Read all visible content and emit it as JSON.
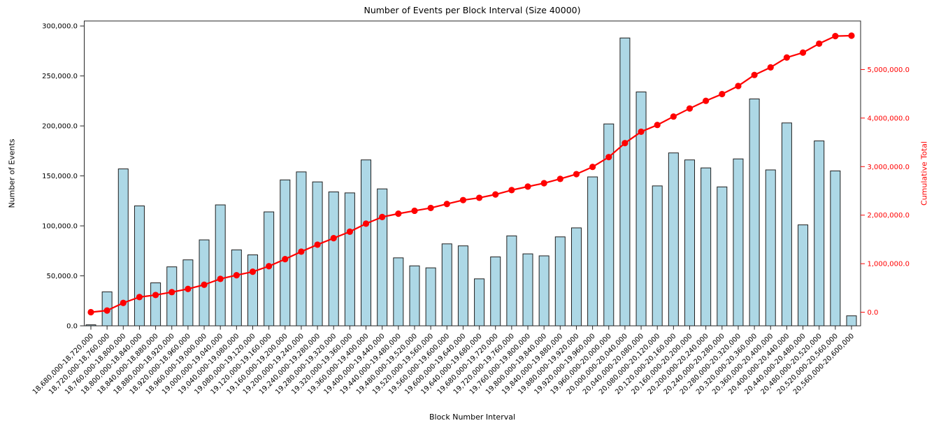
{
  "chart_data": {
    "type": "bar",
    "title": "Number of Events per Block Interval (Size 40000)",
    "xlabel": "Block Number Interval",
    "ylabel": "Number of Events",
    "ylabel2": "Cumulative Total",
    "grid": false,
    "legend": "none",
    "background": "#ffffff",
    "x_tick_rotation": 45,
    "categories": [
      "18,680,000-18,720,000",
      "18,720,000-18,760,000",
      "18,760,000-18,800,000",
      "18,800,000-18,840,000",
      "18,840,000-18,880,000",
      "18,880,000-18,920,000",
      "18,920,000-18,960,000",
      "18,960,000-19,000,000",
      "19,000,000-19,040,000",
      "19,040,000-19,080,000",
      "19,080,000-19,120,000",
      "19,120,000-19,160,000",
      "19,160,000-19,200,000",
      "19,200,000-19,240,000",
      "19,240,000-19,280,000",
      "19,280,000-19,320,000",
      "19,320,000-19,360,000",
      "19,360,000-19,400,000",
      "19,400,000-19,440,000",
      "19,440,000-19,480,000",
      "19,480,000-19,520,000",
      "19,520,000-19,560,000",
      "19,560,000-19,600,000",
      "19,600,000-19,640,000",
      "19,640,000-19,680,000",
      "19,680,000-19,720,000",
      "19,720,000-19,760,000",
      "19,760,000-19,800,000",
      "19,800,000-19,840,000",
      "19,840,000-19,880,000",
      "19,880,000-19,920,000",
      "19,920,000-19,960,000",
      "19,960,000-20,000,000",
      "20,000,000-20,040,000",
      "20,040,000-20,080,000",
      "20,080,000-20,120,000",
      "20,120,000-20,160,000",
      "20,160,000-20,200,000",
      "20,200,000-20,240,000",
      "20,240,000-20,280,000",
      "20,280,000-20,320,000",
      "20,320,000-20,360,000",
      "20,360,000-20,400,000",
      "20,400,000-20,440,000",
      "20,440,000-20,480,000",
      "20,480,000-20,520,000",
      "20,520,000-20,560,000",
      "20,560,000-20,600,000"
    ],
    "series": [
      {
        "name": "Number of Events",
        "type": "bar",
        "axis": "left",
        "color": "#add8e6",
        "edge_color": "#1f1f1f",
        "values": [
          1000,
          34000,
          157000,
          120000,
          43000,
          59000,
          66000,
          86000,
          121000,
          76000,
          71000,
          114000,
          146000,
          154000,
          144000,
          134000,
          133000,
          166000,
          137000,
          68000,
          60000,
          58000,
          82000,
          80000,
          47000,
          69000,
          90000,
          72000,
          70000,
          89000,
          98000,
          149000,
          202000,
          288000,
          234000,
          140000,
          173000,
          166000,
          158000,
          139000,
          167000,
          227000,
          156000,
          203000,
          101000,
          185000,
          155000,
          10000
        ]
      },
      {
        "name": "Cumulative Total",
        "type": "line",
        "axis": "right",
        "color": "#ff0000",
        "marker": "circle",
        "values": [
          1000,
          35000,
          192000,
          312000,
          355000,
          414000,
          480000,
          566000,
          687000,
          763000,
          834000,
          948000,
          1094000,
          1248000,
          1392000,
          1526000,
          1659000,
          1825000,
          1962000,
          2030000,
          2090000,
          2148000,
          2230000,
          2310000,
          2357000,
          2426000,
          2516000,
          2588000,
          2658000,
          2747000,
          2845000,
          2994000,
          3196000,
          3484000,
          3718000,
          3858000,
          4031000,
          4197000,
          4355000,
          4494000,
          4661000,
          4888000,
          5044000,
          5247000,
          5348000,
          5533000,
          5688000,
          5698000
        ]
      }
    ],
    "left_axis": {
      "range": [
        0,
        305000
      ],
      "ticks": [
        0,
        50000,
        100000,
        150000,
        200000,
        250000,
        300000
      ],
      "tick_labels": [
        "0.0",
        "50,000.0",
        "100,000.0",
        "150,000.0",
        "200,000.0",
        "250,000.0",
        "300,000.0"
      ],
      "color": "#000000"
    },
    "right_axis": {
      "range": [
        -280000,
        6000000
      ],
      "ticks": [
        0,
        1000000,
        2000000,
        3000000,
        4000000,
        5000000
      ],
      "tick_labels": [
        "0.0",
        "1,000,000.0",
        "2,000,000.0",
        "3,000,000.0",
        "4,000,000.0",
        "5,000,000.0"
      ],
      "color": "#ff0000"
    }
  }
}
